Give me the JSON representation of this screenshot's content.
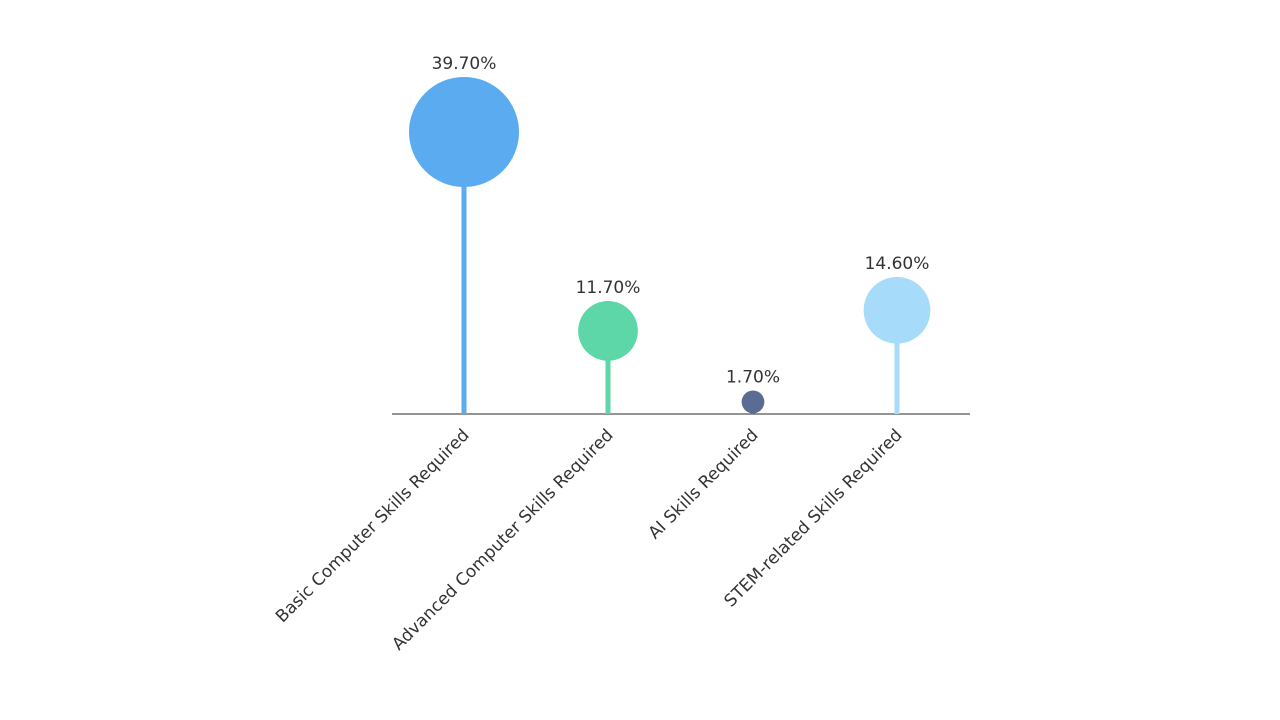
{
  "chart_data": {
    "type": "lollipop",
    "title": "",
    "xlabel": "",
    "ylabel": "",
    "ylim": [
      0,
      45
    ],
    "grid": false,
    "legend": "none",
    "categories": [
      "Basic Computer Skills Required",
      "Advanced Computer Skills Required",
      "AI Skills Required",
      "STEM-related Skills Required"
    ],
    "values": [
      39.7,
      11.7,
      1.7,
      14.6
    ],
    "value_labels": [
      "39.70%",
      "11.70%",
      "1.70%",
      "14.60%"
    ],
    "colors": [
      "#5aabf0",
      "#5dd6a8",
      "#5a6c93",
      "#a6dcf9"
    ]
  }
}
